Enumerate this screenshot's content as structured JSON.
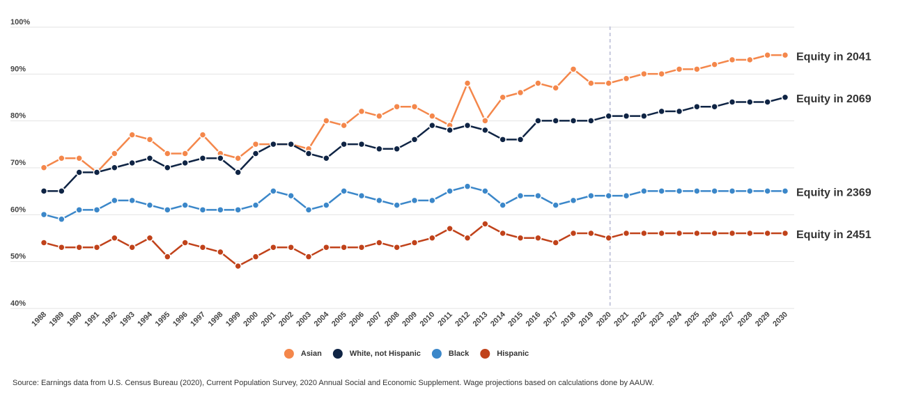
{
  "chart_data": {
    "type": "line",
    "x": [
      1988,
      1989,
      1990,
      1991,
      1992,
      1993,
      1994,
      1995,
      1996,
      1997,
      1998,
      1999,
      2000,
      2001,
      2002,
      2003,
      2004,
      2005,
      2006,
      2007,
      2008,
      2009,
      2010,
      2011,
      2012,
      2013,
      2014,
      2015,
      2016,
      2017,
      2018,
      2019,
      2020,
      2021,
      2022,
      2023,
      2024,
      2025,
      2026,
      2027,
      2028,
      2029,
      2030
    ],
    "xlim": [
      1988,
      2030
    ],
    "xticks": [
      1988,
      1989,
      1990,
      1991,
      1992,
      1993,
      1994,
      1995,
      1996,
      1997,
      1998,
      1999,
      2000,
      2001,
      2002,
      2003,
      2004,
      2005,
      2006,
      2007,
      2008,
      2009,
      2010,
      2011,
      2012,
      2013,
      2014,
      2015,
      2016,
      2017,
      2018,
      2019,
      2020,
      2021,
      2022,
      2023,
      2024,
      2025,
      2026,
      2027,
      2028,
      2029,
      2030
    ],
    "ylim": [
      40,
      100
    ],
    "yticks": [
      {
        "value": 40,
        "label": "40%"
      },
      {
        "value": 50,
        "label": "50%"
      },
      {
        "value": 60,
        "label": "60%"
      },
      {
        "value": 70,
        "label": "70%"
      },
      {
        "value": 80,
        "label": "80%"
      },
      {
        "value": 90,
        "label": "90%"
      },
      {
        "value": 100,
        "label": "100%"
      }
    ],
    "grid": true,
    "divider_x": 2020,
    "series": [
      {
        "name": "Asian",
        "color": "#f4874b",
        "annotation": "Equity in 2041",
        "values": [
          69,
          71,
          71,
          68,
          72,
          76,
          75,
          72,
          72,
          76,
          72,
          71,
          74,
          74,
          74,
          73,
          79,
          78,
          81,
          80,
          82,
          82,
          80,
          78,
          87,
          79,
          84,
          85,
          87,
          86,
          90,
          87,
          87,
          88,
          89,
          89,
          90,
          90,
          91,
          92,
          92,
          93,
          93
        ]
      },
      {
        "name": "White, not Hispanic",
        "color": "#0f2444",
        "annotation": "Equity in 2069",
        "values": [
          64,
          64,
          68,
          68,
          69,
          70,
          71,
          69,
          70,
          71,
          71,
          68,
          72,
          74,
          74,
          72,
          71,
          74,
          74,
          73,
          73,
          75,
          78,
          77,
          78,
          77,
          75,
          75,
          79,
          79,
          79,
          79,
          80,
          80,
          80,
          81,
          81,
          82,
          82,
          83,
          83,
          83,
          84
        ]
      },
      {
        "name": "Black",
        "color": "#3b87c9",
        "annotation": "Equity in 2369",
        "values": [
          59,
          58,
          60,
          60,
          62,
          62,
          61,
          60,
          61,
          60,
          60,
          60,
          61,
          64,
          63,
          60,
          61,
          64,
          63,
          62,
          61,
          62,
          62,
          64,
          65,
          64,
          61,
          63,
          63,
          61,
          62,
          63,
          63,
          63,
          64,
          64,
          64,
          64,
          64,
          64,
          64,
          64,
          64
        ]
      },
      {
        "name": "Hispanic",
        "color": "#c0421a",
        "annotation": "Equity in 2451",
        "values": [
          53,
          52,
          52,
          52,
          54,
          52,
          54,
          50,
          53,
          52,
          51,
          48,
          50,
          52,
          52,
          50,
          52,
          52,
          52,
          53,
          52,
          53,
          54,
          56,
          54,
          57,
          55,
          54,
          54,
          53,
          55,
          55,
          54,
          55,
          55,
          55,
          55,
          55,
          55,
          55,
          55,
          55,
          55
        ]
      }
    ],
    "source": "Source: Earnings data from U.S. Census Bureau (2020), Current Population Survey, 2020 Annual Social and Economic Supplement. Wage projections based on calculations done by AAUW."
  }
}
